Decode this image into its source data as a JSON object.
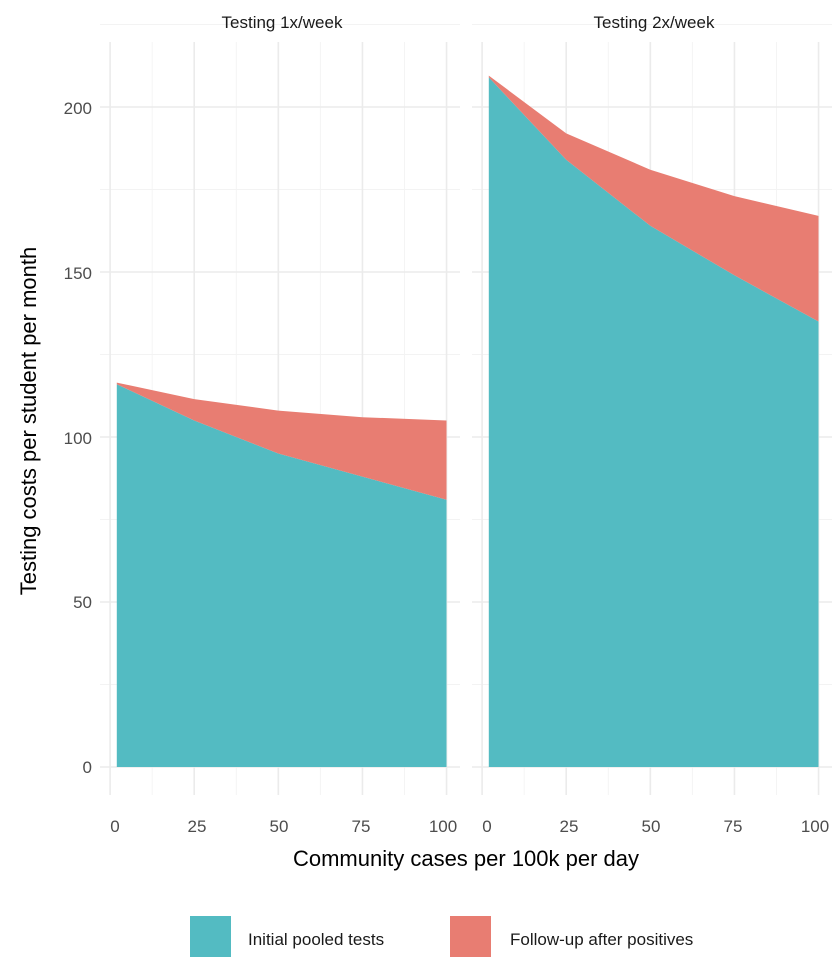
{
  "chart_data": {
    "type": "area",
    "stacked": true,
    "facets": [
      {
        "title": "Testing 1x/week",
        "x": [
          2,
          25,
          50,
          75,
          100
        ],
        "series": [
          {
            "name": "Initial pooled tests",
            "values": [
              116,
              105,
              95,
              88,
              81
            ]
          },
          {
            "name": "Follow-up after positives",
            "values": [
              0.5,
              6.5,
              13,
              18,
              24
            ]
          }
        ]
      },
      {
        "title": "Testing 2x/week",
        "x": [
          2,
          25,
          50,
          75,
          100
        ],
        "series": [
          {
            "name": "Initial pooled tests",
            "values": [
              209,
              184,
              164,
              149,
              135
            ]
          },
          {
            "name": "Follow-up after positives",
            "values": [
              0.5,
              8,
              17,
              24,
              32
            ]
          }
        ]
      }
    ],
    "xlabel": "Community cases per 100k per day",
    "ylabel": "Testing costs per student per month",
    "x_ticks": [
      "0",
      "25",
      "50",
      "75",
      "100"
    ],
    "y_ticks": [
      "0",
      "50",
      "100",
      "150",
      "200"
    ],
    "xlim": [
      -3,
      104
    ],
    "ylim": [
      0,
      220
    ],
    "legend_position": "bottom",
    "legend": [
      {
        "label": "Initial pooled tests",
        "color": "#53BBC2"
      },
      {
        "label": "Follow-up after positives",
        "color": "#E87D72"
      }
    ],
    "colors": {
      "Initial pooled tests": "#53BBC2",
      "Follow-up after positives": "#E87D72"
    },
    "grid": true,
    "theme": "minimal"
  }
}
